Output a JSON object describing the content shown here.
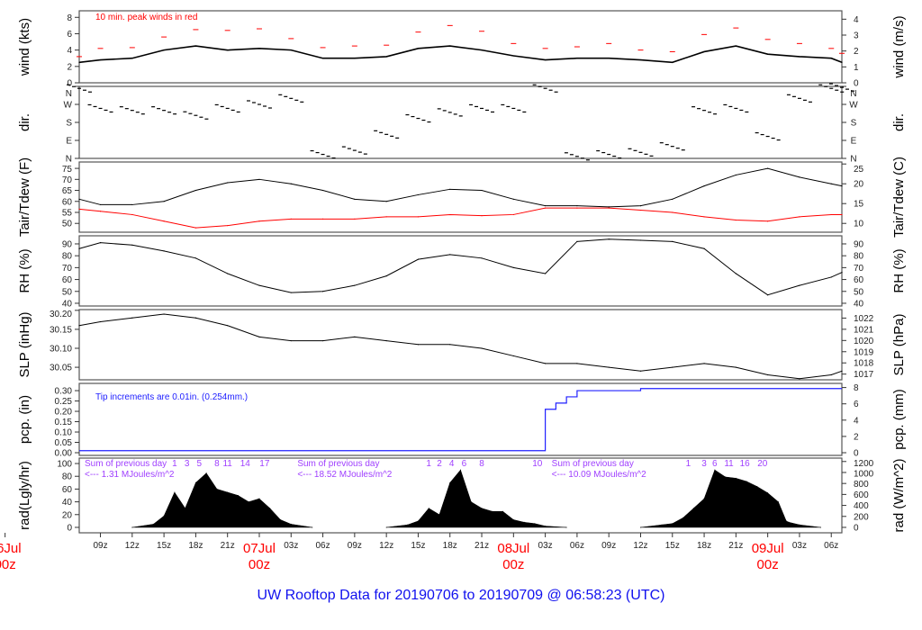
{
  "title": "UW Rooftop Data for 20190706  to  20190709 @ 06:58:23  (UTC)",
  "colors": {
    "main": "#000000",
    "peak": "#ff0000",
    "dew": "#ff0000",
    "precip": "#2020ff",
    "rad_hours": "#a040ff",
    "title": "#1010ee",
    "date": "#ff0000"
  },
  "chart_data": {
    "type": "line",
    "x_range": [
      "2019-07-06T07:00Z",
      "2019-07-09T07:00Z"
    ],
    "x_ticks": [
      "09z",
      "12z",
      "15z",
      "18z",
      "21z",
      "03z",
      "06z",
      "09z",
      "12z",
      "15z",
      "18z",
      "21z",
      "03z",
      "06z",
      "09z",
      "12z",
      "15z",
      "18z",
      "21z",
      "03z",
      "06z"
    ],
    "x_tick_times": [
      "2019-07-06T09:00Z",
      "2019-07-06T12:00Z",
      "2019-07-06T15:00Z",
      "2019-07-06T18:00Z",
      "2019-07-06T21:00Z",
      "2019-07-07T03:00Z",
      "2019-07-07T06:00Z",
      "2019-07-07T09:00Z",
      "2019-07-07T12:00Z",
      "2019-07-07T15:00Z",
      "2019-07-07T18:00Z",
      "2019-07-07T21:00Z",
      "2019-07-08T03:00Z",
      "2019-07-08T06:00Z",
      "2019-07-08T09:00Z",
      "2019-07-08T12:00Z",
      "2019-07-08T15:00Z",
      "2019-07-08T18:00Z",
      "2019-07-08T21:00Z",
      "2019-07-09T03:00Z",
      "2019-07-09T06:00Z"
    ],
    "date_labels": [
      {
        "time": "2019-07-06T00:00Z",
        "day": "06Jul",
        "hour": "00z"
      },
      {
        "time": "2019-07-07T00:00Z",
        "day": "07Jul",
        "hour": "00z"
      },
      {
        "time": "2019-07-08T00:00Z",
        "day": "08Jul",
        "hour": "00z"
      },
      {
        "time": "2019-07-09T00:00Z",
        "day": "09Jul",
        "hour": "00z"
      }
    ],
    "x": [
      "2019-07-06T07:00Z",
      "2019-07-06T09:00Z",
      "2019-07-06T12:00Z",
      "2019-07-06T15:00Z",
      "2019-07-06T18:00Z",
      "2019-07-06T21:00Z",
      "2019-07-07T00:00Z",
      "2019-07-07T03:00Z",
      "2019-07-07T06:00Z",
      "2019-07-07T09:00Z",
      "2019-07-07T12:00Z",
      "2019-07-07T15:00Z",
      "2019-07-07T18:00Z",
      "2019-07-07T21:00Z",
      "2019-07-08T00:00Z",
      "2019-07-08T03:00Z",
      "2019-07-08T06:00Z",
      "2019-07-08T09:00Z",
      "2019-07-08T12:00Z",
      "2019-07-08T15:00Z",
      "2019-07-08T18:00Z",
      "2019-07-08T21:00Z",
      "2019-07-09T00:00Z",
      "2019-07-09T03:00Z",
      "2019-07-09T06:00Z",
      "2019-07-09T07:00Z"
    ],
    "panels": [
      {
        "id": "wind",
        "ylabel": "wind (kts)",
        "ylabel_right": "wind (m/s)",
        "ylim": [
          0,
          8.8
        ],
        "yticks": [
          "0",
          "2",
          "4",
          "6",
          "8"
        ],
        "yticks_right": [
          "0",
          "1",
          "2",
          "3",
          "4"
        ],
        "annotation": "10 min. peak winds in red",
        "series": [
          {
            "kind": "line",
            "values": [
              2.5,
              2.8,
              3.0,
              4.0,
              4.5,
              4.0,
              4.2,
              4.0,
              3.0,
              3.0,
              3.2,
              4.2,
              4.5,
              4.0,
              3.3,
              2.8,
              3.0,
              3.0,
              2.8,
              2.5,
              3.8,
              4.5,
              3.5,
              3.2,
              3.0,
              2.5
            ]
          },
          {
            "kind": "peak",
            "name": "10 min. peak winds",
            "values": [
              3.2,
              4.2,
              4.3,
              5.6,
              6.5,
              6.4,
              6.6,
              5.4,
              4.3,
              4.5,
              4.6,
              6.2,
              7.0,
              6.3,
              4.8,
              4.2,
              4.4,
              4.8,
              4.0,
              3.8,
              5.9,
              6.7,
              5.3,
              4.8,
              4.2,
              3.6
            ]
          }
        ]
      },
      {
        "id": "dir",
        "ylabel": "dir.",
        "ylabel_right": "dir.",
        "ylim": [
          0,
          360
        ],
        "yticks": [
          "N",
          "E",
          "S",
          "W",
          "N"
        ],
        "yticks_right": [
          "N",
          "E",
          "S",
          "W",
          "N"
        ],
        "series": [
          {
            "kind": "dots",
            "values": [
              350,
              250,
              240,
              240,
              215,
              250,
              270,
              300,
              20,
              40,
              120,
              200,
              230,
              250,
              250,
              350,
              10,
              20,
              30,
              60,
              240,
              250,
              110,
              300,
              350,
              355
            ]
          }
        ]
      },
      {
        "id": "temp",
        "ylabel": "Tair/Tdew (F)",
        "ylabel_right": "Tair/Tdew (C)",
        "ylim": [
          46,
          77.9
        ],
        "yticks": [
          "50",
          "55",
          "60",
          "65",
          "70",
          "75"
        ],
        "yticks_right": [
          "10",
          "15",
          "20",
          "25"
        ],
        "series": [
          {
            "kind": "line",
            "name": "Tair",
            "values": [
              61,
              58.5,
              58.5,
              60,
              65,
              68.5,
              70,
              68,
              65,
              61,
              60,
              63,
              65.5,
              65,
              61,
              58,
              58,
              57.5,
              58,
              61,
              67,
              72,
              75,
              71,
              68,
              67
            ]
          },
          {
            "kind": "dew",
            "name": "Tdew",
            "values": [
              56.5,
              55.5,
              54,
              51,
              48,
              49,
              51,
              52,
              52,
              52,
              53,
              53,
              54,
              53.5,
              54,
              57,
              57,
              57,
              56,
              55,
              53,
              51.5,
              51,
              53,
              54,
              54
            ]
          }
        ]
      },
      {
        "id": "rh",
        "ylabel": "RH (%)",
        "ylabel_right": "RH (%)",
        "ylim": [
          37.7,
          96.8
        ],
        "yticks": [
          "40",
          "50",
          "60",
          "70",
          "80",
          "90"
        ],
        "yticks_right": [
          "40",
          "50",
          "60",
          "70",
          "80",
          "90"
        ],
        "series": [
          {
            "kind": "line",
            "values": [
              86,
              91,
              89,
              84,
              78,
              65,
              55,
              49,
              50,
              55,
              63,
              77,
              81,
              78,
              70,
              65,
              92,
              94,
              93,
              92,
              86,
              65,
              47,
              55,
              62,
              66
            ]
          }
        ]
      },
      {
        "id": "slp",
        "ylabel": "SLP (inHg)",
        "ylabel_right": "SLP (hPa)",
        "ylim": [
          30.017,
          30.202
        ],
        "yticks": [
          "30.05",
          "30.10",
          "30.15",
          "30.20"
        ],
        "yticks_right": [
          "1017",
          "1018",
          "1019",
          "1020",
          "1021",
          "1022"
        ],
        "series": [
          {
            "kind": "line",
            "values": [
              30.16,
              30.17,
              30.18,
              30.19,
              30.18,
              30.16,
              30.13,
              30.12,
              30.12,
              30.13,
              30.12,
              30.11,
              30.11,
              30.1,
              30.08,
              30.06,
              30.06,
              30.05,
              30.04,
              30.05,
              30.06,
              30.05,
              30.03,
              30.02,
              30.03,
              30.04
            ]
          }
        ]
      },
      {
        "id": "pcp",
        "ylabel": "pcp. (in)",
        "ylabel_right": "pcp. (mm)",
        "ylim": [
          -0.013,
          0.335
        ],
        "yticks": [
          "0.00",
          "0.05",
          "0.10",
          "0.15",
          "0.20",
          "0.25",
          "0.30"
        ],
        "yticks_right": [
          "0",
          "2",
          "4",
          "6",
          "8"
        ],
        "annotation": "Tip increments are 0.01in. (0.254mm.)",
        "series": [
          {
            "kind": "precip",
            "name": "cumulative precipitation",
            "x": [
              "2019-07-06T07:00Z",
              "2019-07-08T02:30Z",
              "2019-07-08T03:00Z",
              "2019-07-08T04:00Z",
              "2019-07-08T05:00Z",
              "2019-07-08T06:00Z",
              "2019-07-08T12:00Z",
              "2019-07-09T07:00Z"
            ],
            "values": [
              0.01,
              0.01,
              0.21,
              0.24,
              0.27,
              0.3,
              0.31,
              0.31
            ]
          }
        ]
      },
      {
        "id": "rad",
        "ylabel": "rad(Lgly/hr)",
        "ylabel_right": "rad (W/m^2)",
        "ylim": [
          -8.5,
          108.5
        ],
        "yticks": [
          "0",
          "20",
          "40",
          "60",
          "80",
          "100"
        ],
        "yticks_right": [
          "0",
          "200",
          "400",
          "600",
          "800",
          "1000",
          "1200"
        ],
        "daily_sums": [
          {
            "line1": "Sum of previous day",
            "line2": "<--- 1.31 MJoules/m^2",
            "time": "2019-07-06T07:00Z"
          },
          {
            "line1": "Sum of previous day",
            "line2": "<--- 18.52 MJoules/m^2",
            "time": "2019-07-07T07:00Z"
          },
          {
            "line1": "Sum of previous day",
            "line2": "<--- 10.09 MJoules/m^2",
            "time": "2019-07-08T07:00Z"
          }
        ],
        "hour_marks": [
          {
            "label": "1",
            "time": "2019-07-06T16:00Z"
          },
          {
            "label": "3",
            "time": "2019-07-06T17:10Z"
          },
          {
            "label": "5",
            "time": "2019-07-06T18:20Z"
          },
          {
            "label": "8",
            "time": "2019-07-06T20:00Z"
          },
          {
            "label": "11",
            "time": "2019-07-06T21:00Z"
          },
          {
            "label": "14",
            "time": "2019-07-06T22:40Z"
          },
          {
            "label": "17",
            "time": "2019-07-07T00:30Z"
          },
          {
            "label": "1",
            "time": "2019-07-07T16:00Z"
          },
          {
            "label": "2",
            "time": "2019-07-07T17:00Z"
          },
          {
            "label": "4",
            "time": "2019-07-07T18:10Z"
          },
          {
            "label": "6",
            "time": "2019-07-07T19:20Z"
          },
          {
            "label": "8",
            "time": "2019-07-07T21:00Z"
          },
          {
            "label": "10",
            "time": "2019-07-08T02:15Z"
          },
          {
            "label": "1",
            "time": "2019-07-08T16:30Z"
          },
          {
            "label": "3",
            "time": "2019-07-08T18:00Z"
          },
          {
            "label": "6",
            "time": "2019-07-08T19:00Z"
          },
          {
            "label": "11",
            "time": "2019-07-08T20:20Z"
          },
          {
            "label": "16",
            "time": "2019-07-08T21:50Z"
          },
          {
            "label": "20",
            "time": "2019-07-08T23:30Z"
          }
        ],
        "series": [
          {
            "kind": "area",
            "x": [
              "2019-07-06T12:00Z",
              "2019-07-06T14:00Z",
              "2019-07-06T15:00Z",
              "2019-07-06T16:00Z",
              "2019-07-06T17:00Z",
              "2019-07-06T18:00Z",
              "2019-07-06T19:00Z",
              "2019-07-06T20:00Z",
              "2019-07-06T21:00Z",
              "2019-07-06T22:00Z",
              "2019-07-06T23:00Z",
              "2019-07-07T00:00Z",
              "2019-07-07T01:00Z",
              "2019-07-07T02:00Z",
              "2019-07-07T03:00Z",
              "2019-07-07T05:00Z",
              "2019-07-07T12:00Z",
              "2019-07-07T14:00Z",
              "2019-07-07T15:00Z",
              "2019-07-07T16:00Z",
              "2019-07-07T17:00Z",
              "2019-07-07T18:00Z",
              "2019-07-07T19:00Z",
              "2019-07-07T20:00Z",
              "2019-07-07T21:00Z",
              "2019-07-07T22:00Z",
              "2019-07-07T23:00Z",
              "2019-07-08T00:00Z",
              "2019-07-08T01:00Z",
              "2019-07-08T02:00Z",
              "2019-07-08T03:00Z",
              "2019-07-08T05:00Z",
              "2019-07-08T12:00Z",
              "2019-07-08T14:00Z",
              "2019-07-08T15:00Z",
              "2019-07-08T16:00Z",
              "2019-07-08T17:00Z",
              "2019-07-08T18:00Z",
              "2019-07-08T19:00Z",
              "2019-07-08T20:00Z",
              "2019-07-08T21:00Z",
              "2019-07-08T22:00Z",
              "2019-07-08T23:00Z",
              "2019-07-09T00:00Z",
              "2019-07-09T01:00Z",
              "2019-07-09T01:45Z",
              "2019-07-09T02:00Z",
              "2019-07-09T03:00Z",
              "2019-07-09T05:00Z"
            ],
            "values": [
              0,
              5,
              18,
              55,
              30,
              70,
              85,
              60,
              55,
              50,
              40,
              45,
              30,
              12,
              5,
              0,
              0,
              4,
              10,
              30,
              20,
              70,
              90,
              40,
              30,
              25,
              25,
              12,
              8,
              6,
              2,
              0,
              0,
              4,
              6,
              15,
              30,
              45,
              90,
              79,
              77,
              72,
              64,
              54,
              40,
              10,
              8,
              4,
              0
            ]
          }
        ]
      }
    ]
  }
}
